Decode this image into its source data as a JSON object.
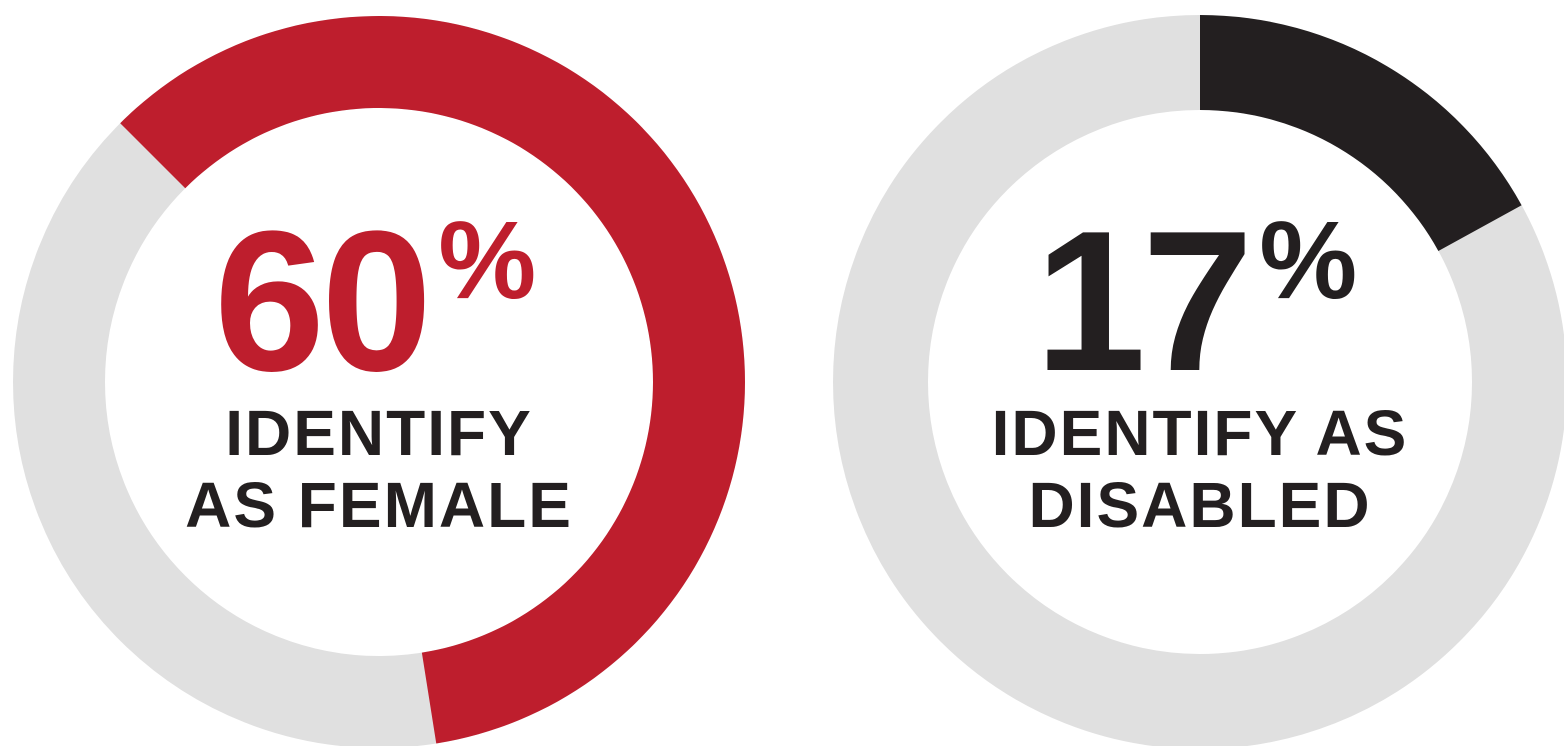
{
  "chart_data": [
    {
      "type": "donut",
      "values": [
        60
      ],
      "value_labels": [
        "60%"
      ],
      "color": "#be1e2d",
      "track_color": "#e0e0e0",
      "label_color": "#be1e2d",
      "label": [
        "IDENTIFY",
        "AS FEMALE"
      ]
    },
    {
      "type": "donut",
      "values": [
        17
      ],
      "value_labels": [
        "17%"
      ],
      "color": "#231f20",
      "track_color": "#e0e0e0",
      "label_color": "#231f20",
      "label": [
        "IDENTIFY AS",
        "DISABLED"
      ]
    }
  ]
}
